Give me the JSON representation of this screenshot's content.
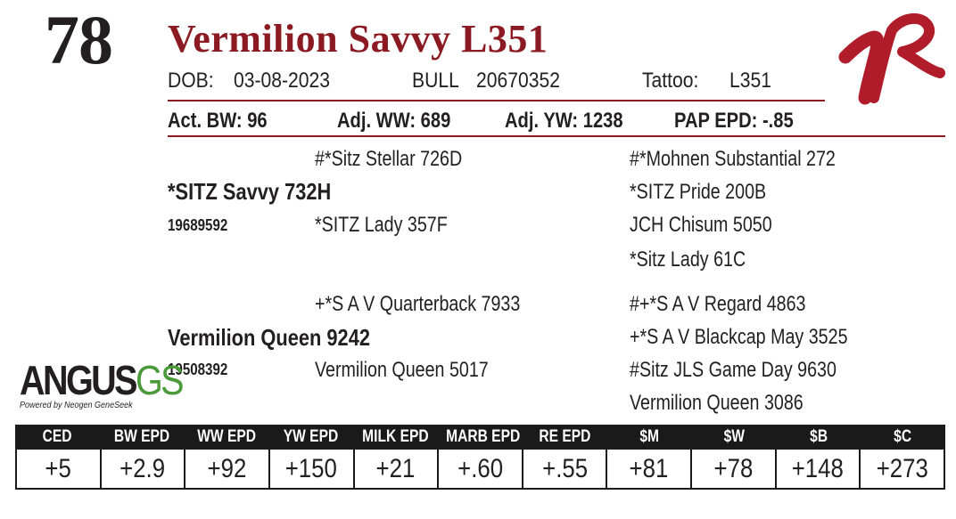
{
  "lot_number": "78",
  "animal_name": "Vermilion Savvy L351",
  "info": {
    "dob_label": "DOB:",
    "dob": "03-08-2023",
    "sex": "BULL",
    "reg_number": "20670352",
    "tattoo_label": "Tattoo:",
    "tattoo": "L351"
  },
  "performance": {
    "act_bw": "Act. BW: 96",
    "adj_ww": "Adj. WW: 689",
    "adj_yw": "Adj. YW: 1238",
    "pap_epd": "PAP EPD: -.85"
  },
  "pedigree": {
    "sire": "*SITZ Savvy 732H",
    "sire_reg": "19689592",
    "sire_sire": "#*Sitz Stellar 726D",
    "sire_dam": "*SITZ Lady 357F",
    "sire_sire_sire": "#*Mohnen Substantial 272",
    "sire_sire_dam": "*SITZ Pride 200B",
    "sire_dam_sire": "JCH Chisum 5050",
    "sire_dam_dam": "*Sitz Lady 61C",
    "dam": "Vermilion Queen 9242",
    "dam_reg": "19508392",
    "dam_sire": "+*S A V Quarterback 7933",
    "dam_dam": "Vermilion Queen 5017",
    "dam_sire_sire": "#+*S A V Regard 4863",
    "dam_sire_dam": "+*S A V Blackcap May 3525",
    "dam_dam_sire": "#Sitz JLS Game Day 9630",
    "dam_dam_dam": "Vermilion Queen 3086"
  },
  "branding": {
    "angus_main": "ANGUS",
    "angus_gs": "GS",
    "angus_sub": "Powered by Neogen GeneSeek",
    "vr_logo_color": "#b01c2a",
    "name_color": "#8b1a22",
    "gs_color": "#4a9a3a"
  },
  "epd_table": {
    "headers": [
      "CED",
      "BW EPD",
      "WW EPD",
      "YW EPD",
      "MILK EPD",
      "MARB EPD",
      "RE EPD",
      "$M",
      "$W",
      "$B",
      "$C"
    ],
    "values": [
      "+5",
      "+2.9",
      "+92",
      "+150",
      "+21",
      "+.60",
      "+.55",
      "+81",
      "+78",
      "+148",
      "+273"
    ]
  }
}
